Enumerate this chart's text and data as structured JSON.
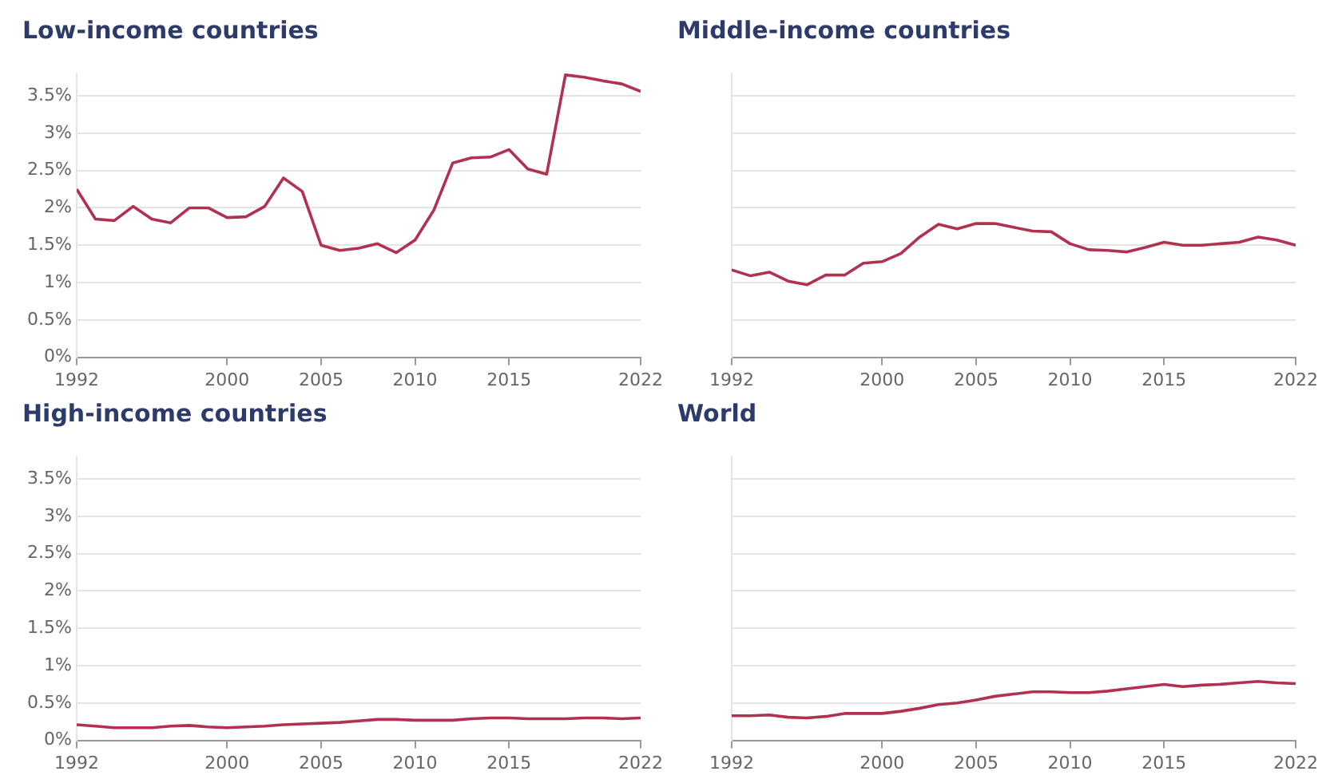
{
  "chart_data": [
    {
      "type": "line",
      "title": "Low-income countries",
      "x": [
        1992,
        1993,
        1994,
        1995,
        1996,
        1997,
        1998,
        1999,
        2000,
        2001,
        2002,
        2003,
        2004,
        2005,
        2006,
        2007,
        2008,
        2009,
        2010,
        2011,
        2012,
        2013,
        2014,
        2015,
        2016,
        2017,
        2018,
        2019,
        2020,
        2021,
        2022
      ],
      "color": "#b13150",
      "values": [
        2.25,
        1.85,
        1.83,
        2.02,
        1.85,
        1.8,
        2.0,
        2.0,
        1.87,
        1.88,
        2.02,
        2.4,
        2.22,
        1.5,
        1.43,
        1.46,
        1.52,
        1.4,
        1.57,
        1.97,
        2.6,
        2.67,
        2.68,
        2.78,
        2.52,
        2.45,
        3.78,
        3.75,
        3.7,
        3.66,
        3.56
      ],
      "xlim": [
        1992,
        2022
      ],
      "xticks": [
        1992,
        2000,
        2005,
        2010,
        2015,
        2022
      ],
      "ylim": [
        0,
        3.8
      ],
      "yticks": [
        {
          "value": 0,
          "label": "0%"
        },
        {
          "value": 0.5,
          "label": "0.5%"
        },
        {
          "value": 1,
          "label": "1%"
        },
        {
          "value": 1.5,
          "label": "1.5%"
        },
        {
          "value": 2,
          "label": "2%"
        },
        {
          "value": 2.5,
          "label": "2.5%"
        },
        {
          "value": 3,
          "label": "3%"
        },
        {
          "value": 3.5,
          "label": "3.5%"
        }
      ],
      "grid": "y",
      "legend": false,
      "marker": "none",
      "line_style": "solid"
    },
    {
      "type": "line",
      "title": "Middle-income countries",
      "x": [
        1992,
        1993,
        1994,
        1995,
        1996,
        1997,
        1998,
        1999,
        2000,
        2001,
        2002,
        2003,
        2004,
        2005,
        2006,
        2007,
        2008,
        2009,
        2010,
        2011,
        2012,
        2013,
        2014,
        2015,
        2016,
        2017,
        2018,
        2019,
        2020,
        2021,
        2022
      ],
      "color": "#b13150",
      "values": [
        1.17,
        1.09,
        1.14,
        1.02,
        0.97,
        1.1,
        1.1,
        1.26,
        1.28,
        1.39,
        1.61,
        1.78,
        1.72,
        1.79,
        1.79,
        1.74,
        1.69,
        1.68,
        1.52,
        1.44,
        1.43,
        1.41,
        1.47,
        1.54,
        1.5,
        1.5,
        1.52,
        1.54,
        1.61,
        1.57,
        1.5
      ],
      "xlim": [
        1992,
        2022
      ],
      "xticks": [
        1992,
        2000,
        2005,
        2010,
        2015,
        2022
      ],
      "ylim": [
        0,
        3.8
      ],
      "yticks": [
        0,
        0.5,
        1,
        1.5,
        2,
        2.5,
        3,
        3.5
      ],
      "tick_labels": "x",
      "grid": "y",
      "legend": false,
      "marker": "none",
      "line_style": "solid"
    },
    {
      "type": "line",
      "title": "High-income countries",
      "x": [
        1992,
        1993,
        1994,
        1995,
        1996,
        1997,
        1998,
        1999,
        2000,
        2001,
        2002,
        2003,
        2004,
        2005,
        2006,
        2007,
        2008,
        2009,
        2010,
        2011,
        2012,
        2013,
        2014,
        2015,
        2016,
        2017,
        2018,
        2019,
        2020,
        2021,
        2022
      ],
      "color": "#b13150",
      "values": [
        0.21,
        0.19,
        0.17,
        0.17,
        0.17,
        0.19,
        0.2,
        0.18,
        0.17,
        0.18,
        0.19,
        0.21,
        0.22,
        0.23,
        0.24,
        0.26,
        0.28,
        0.28,
        0.27,
        0.27,
        0.27,
        0.29,
        0.3,
        0.3,
        0.29,
        0.29,
        0.29,
        0.3,
        0.3,
        0.29,
        0.3
      ],
      "xlim": [
        1992,
        2022
      ],
      "xticks": [
        1992,
        2000,
        2005,
        2010,
        2015,
        2022
      ],
      "ylim": [
        0,
        3.8
      ],
      "yticks": [
        {
          "value": 0,
          "label": "0%"
        },
        {
          "value": 0.5,
          "label": "0.5%"
        },
        {
          "value": 1,
          "label": "1%"
        },
        {
          "value": 1.5,
          "label": "1.5%"
        },
        {
          "value": 2,
          "label": "2%"
        },
        {
          "value": 2.5,
          "label": "2.5%"
        },
        {
          "value": 3,
          "label": "3%"
        },
        {
          "value": 3.5,
          "label": "3.5%"
        }
      ],
      "grid": "y",
      "legend": false,
      "marker": "none",
      "line_style": "solid"
    },
    {
      "type": "line",
      "title": "World",
      "x": [
        1992,
        1993,
        1994,
        1995,
        1996,
        1997,
        1998,
        1999,
        2000,
        2001,
        2002,
        2003,
        2004,
        2005,
        2006,
        2007,
        2008,
        2009,
        2010,
        2011,
        2012,
        2013,
        2014,
        2015,
        2016,
        2017,
        2018,
        2019,
        2020,
        2021,
        2022
      ],
      "color": "#b13150",
      "values": [
        0.33,
        0.33,
        0.34,
        0.31,
        0.3,
        0.32,
        0.36,
        0.36,
        0.36,
        0.39,
        0.43,
        0.48,
        0.5,
        0.54,
        0.59,
        0.62,
        0.65,
        0.65,
        0.64,
        0.64,
        0.66,
        0.69,
        0.72,
        0.75,
        0.72,
        0.74,
        0.75,
        0.77,
        0.79,
        0.77,
        0.76
      ],
      "xlim": [
        1992,
        2022
      ],
      "xticks": [
        1992,
        2000,
        2005,
        2010,
        2015,
        2022
      ],
      "ylim": [
        0,
        3.8
      ],
      "yticks": [
        0,
        0.5,
        1,
        1.5,
        2,
        2.5,
        3,
        3.5
      ],
      "tick_labels": "x",
      "grid": "y",
      "legend": false,
      "marker": "none",
      "line_style": "solid"
    }
  ]
}
